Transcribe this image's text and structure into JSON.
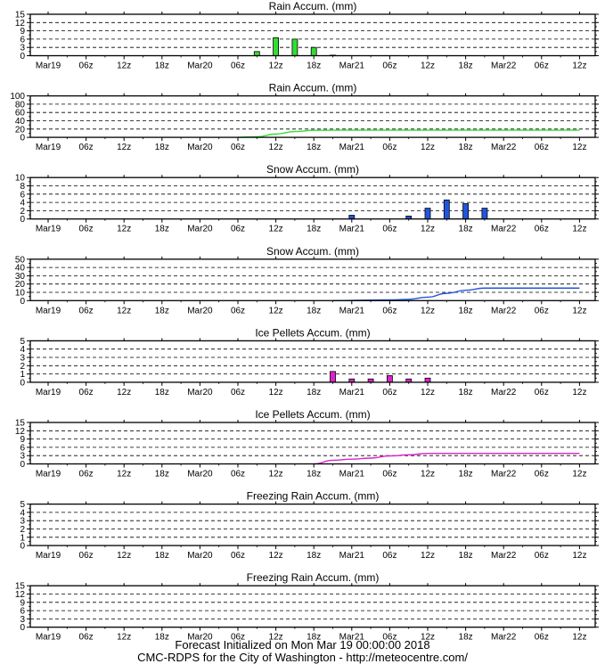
{
  "chart_data": [
    {
      "type": "bar",
      "title": "Rain Accum. (mm)",
      "yticks": [
        0,
        3,
        6,
        9,
        12,
        15
      ],
      "ylim": [
        0,
        15
      ],
      "color": "#33dd33",
      "series": [
        {
          "values": [
            {
              "x": "Mar20 09z",
              "y": 1.5
            },
            {
              "x": "Mar20 12z",
              "y": 6.5
            },
            {
              "x": "Mar20 15z",
              "y": 6.0
            },
            {
              "x": "Mar20 18z",
              "y": 3.0
            },
            {
              "x": "Mar20 21z",
              "y": 0.2
            }
          ]
        }
      ]
    },
    {
      "type": "line",
      "title": "Rain Accum. (mm)",
      "yticks": [
        0,
        20,
        40,
        60,
        80,
        100
      ],
      "ylim": [
        0,
        100
      ],
      "color": "#33dd33",
      "series": [
        {
          "values": [
            {
              "x": "Mar20 06z",
              "y": 0
            },
            {
              "x": "Mar20 09z",
              "y": 1.5
            },
            {
              "x": "Mar20 12z",
              "y": 8
            },
            {
              "x": "Mar20 15z",
              "y": 14
            },
            {
              "x": "Mar20 18z",
              "y": 17
            },
            {
              "x": "Mar20 21z",
              "y": 17.2
            },
            {
              "x": "Mar22 12z",
              "y": 17.2
            }
          ]
        }
      ]
    },
    {
      "type": "bar",
      "title": "Snow Accum. (mm)",
      "yticks": [
        0,
        2,
        4,
        6,
        8,
        10
      ],
      "ylim": [
        0,
        10
      ],
      "color": "#2255dd",
      "series": [
        {
          "values": [
            {
              "x": "Mar21 00z",
              "y": 0.9
            },
            {
              "x": "Mar21 09z",
              "y": 0.7
            },
            {
              "x": "Mar21 12z",
              "y": 2.6
            },
            {
              "x": "Mar21 15z",
              "y": 4.6
            },
            {
              "x": "Mar21 18z",
              "y": 3.7
            },
            {
              "x": "Mar21 21z",
              "y": 2.6
            }
          ]
        }
      ]
    },
    {
      "type": "line",
      "title": "Snow Accum. (mm)",
      "yticks": [
        0,
        10,
        20,
        30,
        40,
        50
      ],
      "ylim": [
        0,
        50
      ],
      "color": "#2255dd",
      "series": [
        {
          "values": [
            {
              "x": "Mar20 21z",
              "y": 0
            },
            {
              "x": "Mar21 06z",
              "y": 0.9
            },
            {
              "x": "Mar21 09z",
              "y": 1.6
            },
            {
              "x": "Mar21 12z",
              "y": 4.2
            },
            {
              "x": "Mar21 15z",
              "y": 8.8
            },
            {
              "x": "Mar21 18z",
              "y": 12.5
            },
            {
              "x": "Mar21 21z",
              "y": 15.1
            },
            {
              "x": "Mar22 12z",
              "y": 15.1
            }
          ]
        }
      ]
    },
    {
      "type": "bar",
      "title": "Ice Pellets Accum. (mm)",
      "yticks": [
        0,
        1,
        2,
        3,
        4,
        5
      ],
      "ylim": [
        0,
        5
      ],
      "color": "#dd22cc",
      "series": [
        {
          "values": [
            {
              "x": "Mar20 21z",
              "y": 1.3
            },
            {
              "x": "Mar21 00z",
              "y": 0.4
            },
            {
              "x": "Mar21 03z",
              "y": 0.4
            },
            {
              "x": "Mar21 06z",
              "y": 0.8
            },
            {
              "x": "Mar21 09z",
              "y": 0.4
            },
            {
              "x": "Mar21 12z",
              "y": 0.5
            }
          ]
        }
      ]
    },
    {
      "type": "line",
      "title": "Ice Pellets Accum. (mm)",
      "yticks": [
        0,
        3,
        6,
        9,
        12,
        15
      ],
      "ylim": [
        0,
        15
      ],
      "color": "#dd22cc",
      "series": [
        {
          "values": [
            {
              "x": "Mar20 18z",
              "y": 0
            },
            {
              "x": "Mar20 21z",
              "y": 1.3
            },
            {
              "x": "Mar21 00z",
              "y": 1.7
            },
            {
              "x": "Mar21 03z",
              "y": 2.1
            },
            {
              "x": "Mar21 06z",
              "y": 2.9
            },
            {
              "x": "Mar21 09z",
              "y": 3.3
            },
            {
              "x": "Mar21 12z",
              "y": 3.8
            },
            {
              "x": "Mar22 12z",
              "y": 3.8
            }
          ]
        }
      ]
    },
    {
      "type": "bar",
      "title": "Freezing Rain Accum. (mm)",
      "yticks": [
        0,
        1,
        2,
        3,
        4,
        5
      ],
      "ylim": [
        0,
        5
      ],
      "color": "#000000",
      "series": [
        {
          "values": []
        }
      ]
    },
    {
      "type": "line",
      "title": "Freezing Rain Accum. (mm)",
      "yticks": [
        0,
        3,
        6,
        9,
        12,
        15
      ],
      "ylim": [
        0,
        15
      ],
      "color": "#000000",
      "series": [
        {
          "values": []
        }
      ]
    }
  ],
  "x_axis": {
    "tick_labels": [
      "Mar19",
      "06z",
      "12z",
      "18z",
      "Mar20",
      "06z",
      "12z",
      "18z",
      "Mar21",
      "06z",
      "12z",
      "18z",
      "Mar22",
      "06z",
      "12z"
    ],
    "tick_times": [
      "Mar19 00z",
      "Mar19 06z",
      "Mar19 12z",
      "Mar19 18z",
      "Mar20 00z",
      "Mar20 06z",
      "Mar20 12z",
      "Mar20 18z",
      "Mar21 00z",
      "Mar21 06z",
      "Mar21 12z",
      "Mar21 18z",
      "Mar22 00z",
      "Mar22 06z",
      "Mar22 12z"
    ]
  },
  "footer": {
    "line1": "Forecast Initialized on Mon Mar 19 00:00:00 2018",
    "line2": "CMC-RDPS for the City of Washington - http://meteocentre.com/"
  }
}
